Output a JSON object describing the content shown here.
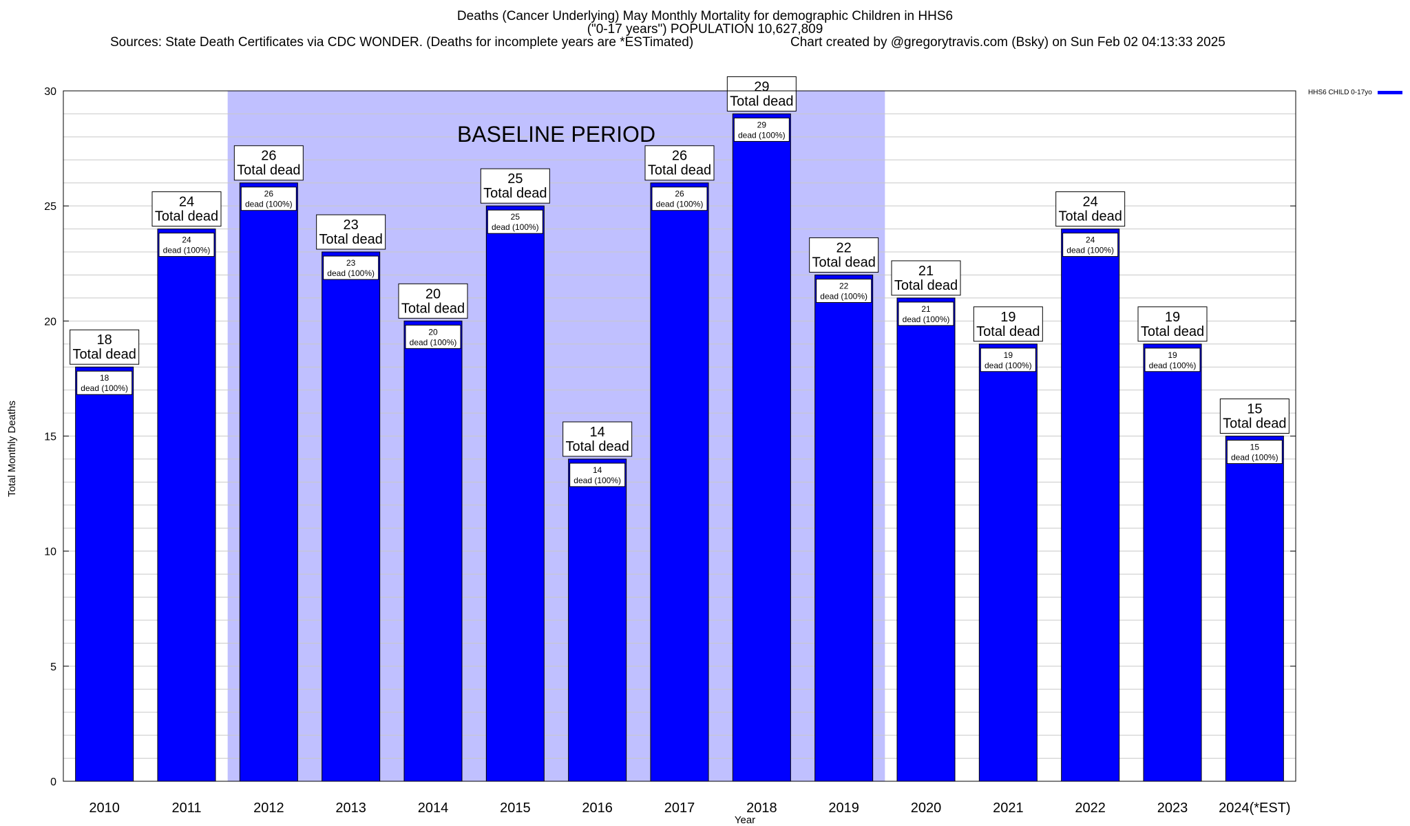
{
  "header": {
    "title_line1": "Deaths (Cancer Underlying) May Monthly Mortality for demographic Children in HHS6",
    "title_line2": "(\"0-17 years\") POPULATION 10,627,809",
    "sources": "Sources: State Death Certificates via CDC WONDER. (Deaths for incomplete years are *ESTimated)",
    "credit": "Chart created by @gregorytravis.com (Bsky) on Sun Feb 02 04:13:33 2025"
  },
  "legend": {
    "label": "HHS6 CHILD 0-17yo",
    "color": "#0000ff"
  },
  "chart_data": {
    "type": "bar",
    "xlabel": "Year",
    "ylabel": "Total Monthly Deaths",
    "ylim": [
      0,
      30
    ],
    "y_ticks": [
      0,
      5,
      10,
      15,
      20,
      25,
      30
    ],
    "grid": true,
    "legend_placement": "top-right",
    "categories": [
      "2010",
      "2011",
      "2012",
      "2013",
      "2014",
      "2015",
      "2016",
      "2017",
      "2018",
      "2019",
      "2020",
      "2021",
      "2022",
      "2023",
      "2024(*EST)"
    ],
    "series": [
      {
        "name": "HHS6 CHILD 0-17yo",
        "color": "#0000ff",
        "values": [
          18,
          24,
          26,
          23,
          20,
          25,
          14,
          26,
          29,
          22,
          21,
          19,
          24,
          19,
          15
        ]
      }
    ],
    "total_label_text": "Total dead",
    "inner_label_text": "dead (100%)",
    "baseline": {
      "label": "BASELINE PERIOD",
      "from": "2012",
      "to": "2019",
      "color": "#c0c0ff"
    }
  }
}
